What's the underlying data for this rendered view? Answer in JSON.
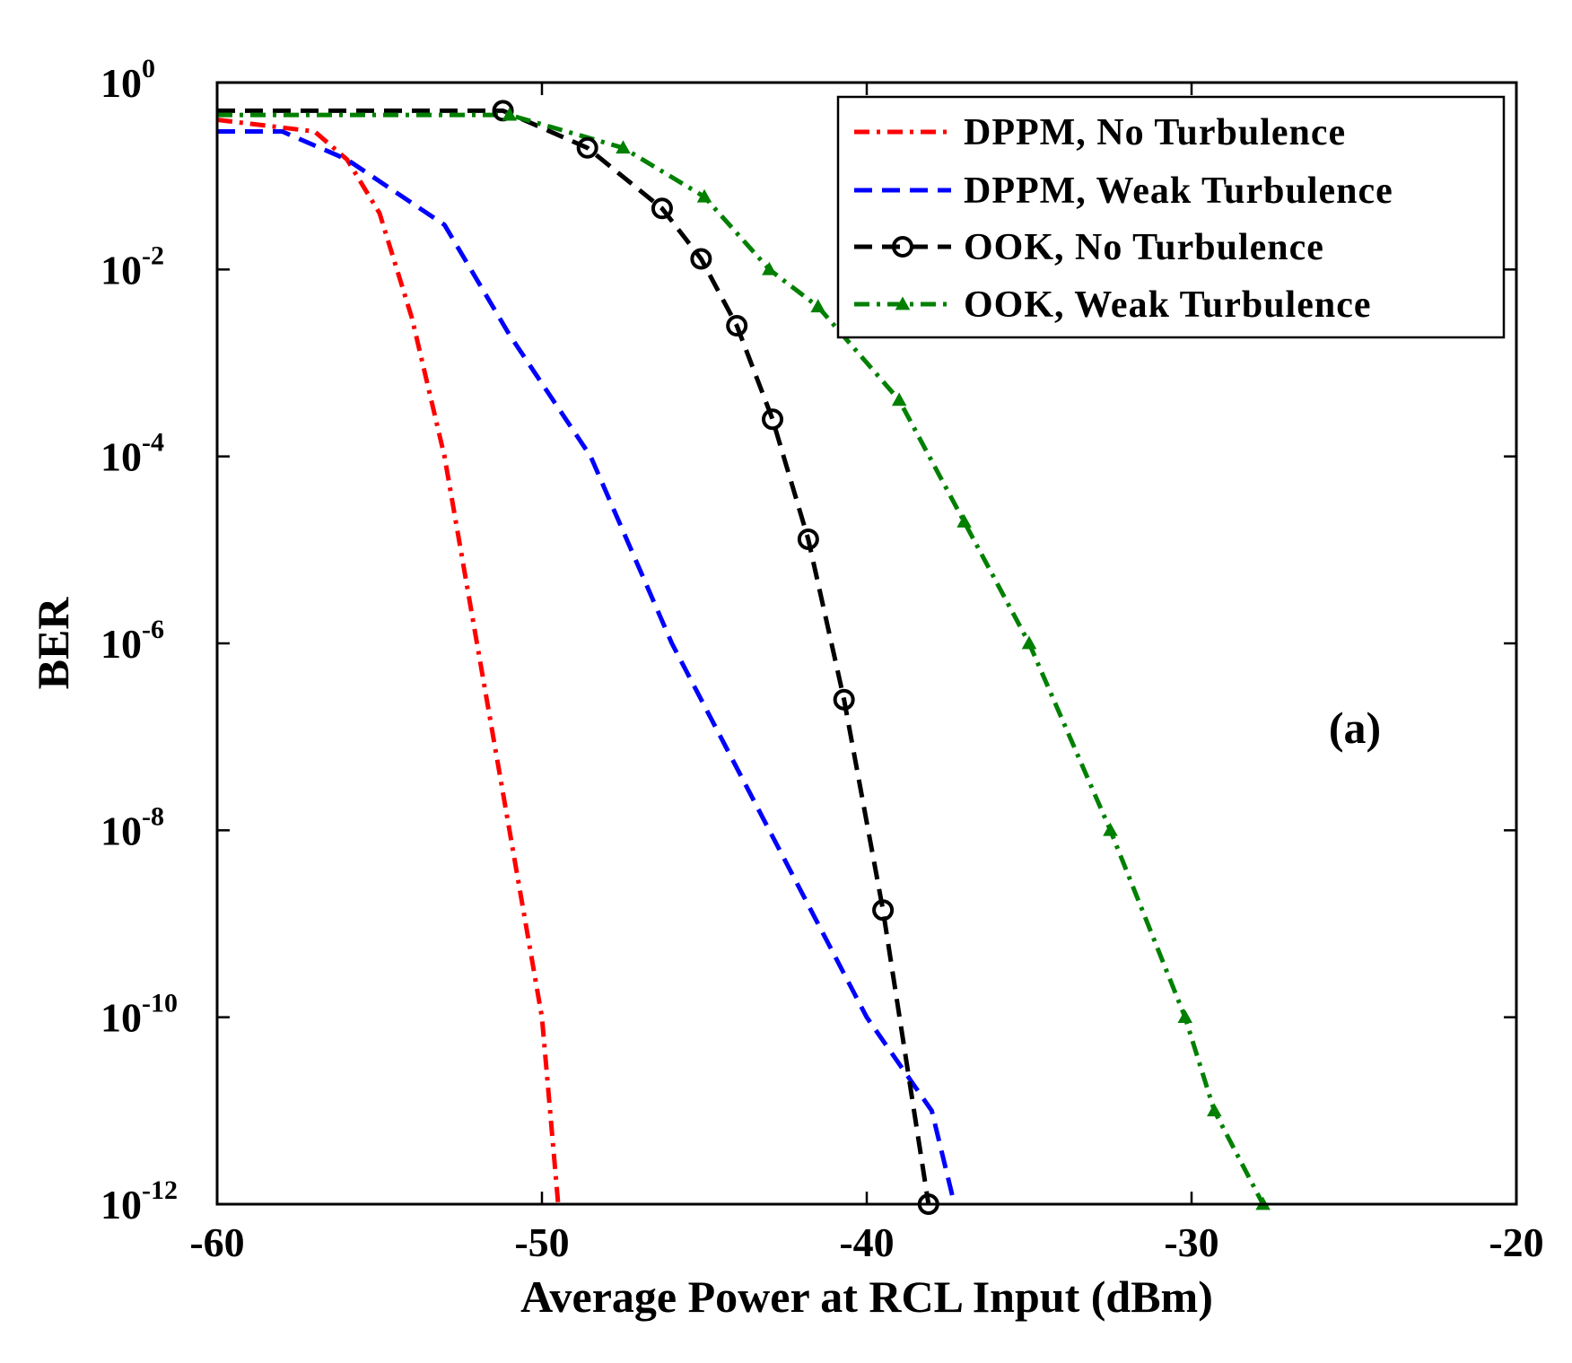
{
  "chart_data": {
    "type": "line",
    "xlabel": "Average Power at RCL Input (dBm)",
    "ylabel": "BER",
    "xlim": [
      -60,
      -20
    ],
    "ylim": [
      1e-12,
      1
    ],
    "yscale": "log",
    "x_ticks": [
      -60,
      -50,
      -40,
      -30,
      -20
    ],
    "x_tick_labels": [
      "-60",
      "-50",
      "-40",
      "-30",
      "-20"
    ],
    "y_ticks": [
      1,
      0.01,
      0.0001,
      1e-06,
      1e-08,
      1e-10,
      1e-12
    ],
    "y_tick_labels": [
      {
        "base": "10",
        "exp": "0"
      },
      {
        "base": "10",
        "exp": "-2"
      },
      {
        "base": "10",
        "exp": "-4"
      },
      {
        "base": "10",
        "exp": "-6"
      },
      {
        "base": "10",
        "exp": "-8"
      },
      {
        "base": "10",
        "exp": "-10"
      },
      {
        "base": "10",
        "exp": "-12"
      }
    ],
    "grid": false,
    "legend_position": "top-right",
    "annotation": "(a)",
    "series": [
      {
        "name": "DPPM, No Turbulence",
        "color": "#ff0000",
        "dash": "dashdot",
        "marker": "none",
        "x": [
          -60,
          -57,
          -56,
          -55,
          -54,
          -53,
          -52,
          -51,
          -50,
          -49.5
        ],
        "y": [
          0.4,
          0.3,
          0.15,
          0.04,
          0.003,
          0.0001,
          1e-06,
          1e-08,
          1e-10,
          1e-12
        ]
      },
      {
        "name": "DPPM, Weak Turbulence",
        "color": "#0000ff",
        "dash": "dashed",
        "marker": "none",
        "x": [
          -60,
          -58,
          -56,
          -53,
          -51,
          -48.5,
          -46,
          -43,
          -40,
          -38,
          -37.3
        ],
        "y": [
          0.3,
          0.3,
          0.15,
          0.03,
          0.002,
          0.0001,
          1e-06,
          1e-08,
          1e-10,
          1e-11,
          1e-12
        ]
      },
      {
        "name": "OOK, No Turbulence",
        "color": "#000000",
        "dash": "dashed",
        "marker": "circle",
        "x": [
          -60,
          -51.2,
          -48.6,
          -46.3,
          -45.1,
          -44,
          -42.9,
          -41.8,
          -40.7,
          -39.5,
          -38.1
        ],
        "y": [
          0.5,
          0.5,
          0.2,
          0.045,
          0.013,
          0.0025,
          0.00025,
          1.3e-05,
          2.5e-07,
          1.4e-09,
          1e-12
        ]
      },
      {
        "name": "OOK, Weak Turbulence",
        "color": "#008000",
        "dash": "dashdot",
        "marker": "triangle",
        "x": [
          -60,
          -51,
          -47.5,
          -45,
          -43,
          -41.5,
          -39,
          -37,
          -35,
          -32.5,
          -30.2,
          -29.3,
          -27.8
        ],
        "y": [
          0.45,
          0.45,
          0.2,
          0.06,
          0.01,
          0.004,
          0.0004,
          2e-05,
          1e-06,
          1e-08,
          1e-10,
          1e-11,
          1e-12
        ]
      }
    ]
  }
}
